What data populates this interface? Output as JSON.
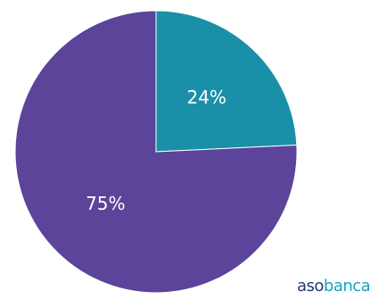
{
  "chart_data": {
    "type": "pie",
    "slices": [
      {
        "label": "24%",
        "value": 24,
        "color": "#1a8fa8"
      },
      {
        "label": "75%",
        "value": 75,
        "color": "#5b449a"
      }
    ],
    "start_angle_deg": 0,
    "direction": "clockwise"
  },
  "logo": {
    "part1": "aso",
    "part2": "banca"
  }
}
